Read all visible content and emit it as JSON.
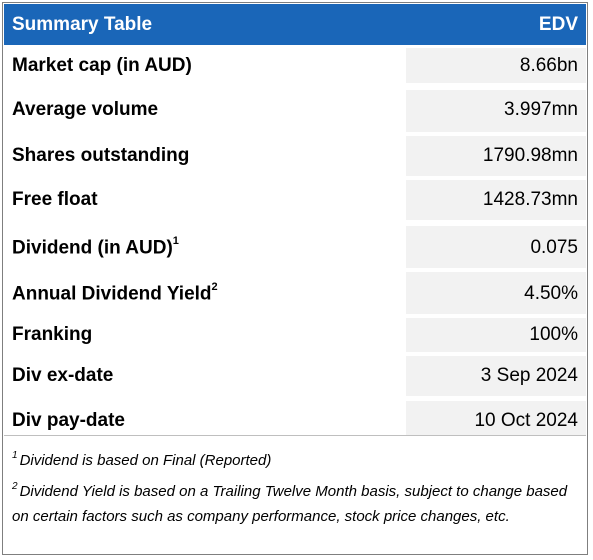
{
  "header": {
    "title": "Summary Table",
    "ticker": "EDV"
  },
  "rows": [
    {
      "label": "Market cap (in AUD)",
      "sup": "",
      "value": "8.66bn"
    },
    {
      "label": "Average volume",
      "sup": "",
      "value": "3.997mn"
    },
    {
      "label": "Shares outstanding",
      "sup": "",
      "value": "1790.98mn"
    },
    {
      "label": "Free float",
      "sup": "",
      "value": "1428.73mn"
    },
    {
      "label": "Dividend (in AUD)",
      "sup": "1",
      "value": "0.075"
    },
    {
      "label": "Annual Dividend Yield",
      "sup": "2",
      "value": "4.50%"
    },
    {
      "label": "Franking",
      "sup": "",
      "value": "100%"
    },
    {
      "label": "Div ex-date",
      "sup": "",
      "value": "3 Sep 2024"
    },
    {
      "label": "Div pay-date",
      "sup": "",
      "value": "10 Oct 2024"
    }
  ],
  "footnotes": [
    {
      "marker": "1",
      "text": "Dividend is based on Final (Reported)"
    },
    {
      "marker": "2",
      "text": "Dividend Yield is based on a Trailing Twelve Month basis, subject to change based on certain factors such as company performance, stock price changes, etc."
    }
  ],
  "colors": {
    "header_bg": "#1a66b8",
    "header_text": "#ffffff",
    "value_cell_bg": "#f2f2f2"
  }
}
